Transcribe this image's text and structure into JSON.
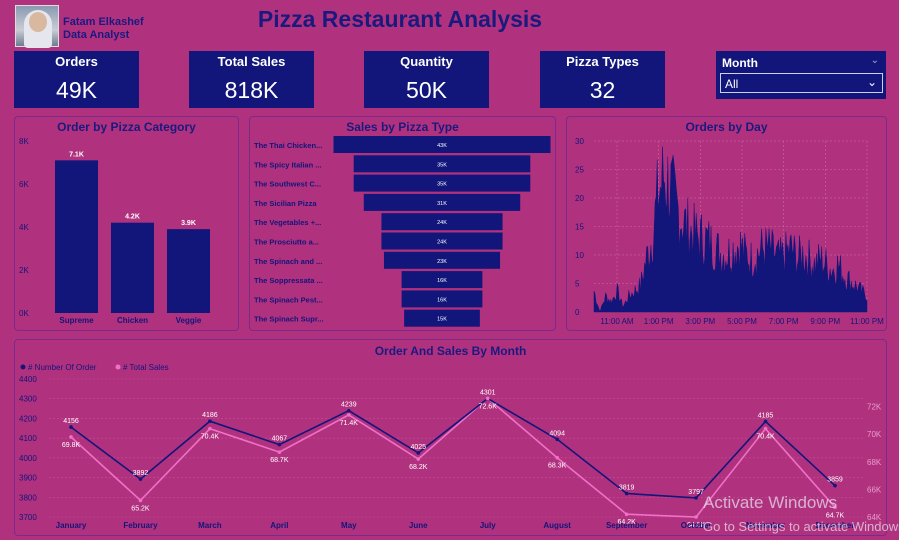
{
  "header": {
    "author_name": "Fatam Elkashef",
    "author_role": "Data Analyst",
    "title": "Pizza Restaurant Analysis"
  },
  "kpis": [
    {
      "label": "Orders",
      "value": "49K"
    },
    {
      "label": "Total Sales",
      "value": "818K"
    },
    {
      "label": "Quantity",
      "value": "50K"
    },
    {
      "label": "Pizza Types",
      "value": "32"
    }
  ],
  "slicer": {
    "label": "Month",
    "selected": "All"
  },
  "watermark": {
    "line1": "Activate Windows",
    "line2": "Go to Settings to activate Windows."
  },
  "colors": {
    "bar": "#12157a",
    "background": "#b0327f",
    "sales_line": "#f070c8",
    "orders_line": "#12157a"
  },
  "chart_data": [
    {
      "type": "bar",
      "title": "Order by Pizza Category",
      "categories": [
        "Supreme",
        "Chicken",
        "Veggie"
      ],
      "values": [
        7100,
        4200,
        3900
      ],
      "data_labels": [
        "7.1K",
        "4.2K",
        "3.9K"
      ],
      "yticks": [
        "0K",
        "2K",
        "4K",
        "6K",
        "8K"
      ],
      "ylim": [
        0,
        8000
      ]
    },
    {
      "type": "bar",
      "orientation": "funnel",
      "title": "Sales by Pizza Type",
      "categories": [
        "The Thai Chicken...",
        "The Spicy Italian ...",
        "The Southwest C...",
        "The Sicilian Pizza",
        "The Vegetables +...",
        "The Prosciutto a...",
        "The Spinach and ...",
        "The Soppressata ...",
        "The Spinach Pest...",
        "The Spinach Supr..."
      ],
      "values": [
        43000,
        35000,
        35000,
        31000,
        24000,
        24000,
        23000,
        16000,
        16000,
        15000
      ],
      "data_labels": [
        "43K",
        "35K",
        "35K",
        "31K",
        "24K",
        "24K",
        "23K",
        "16K",
        "16K",
        "15K"
      ]
    },
    {
      "type": "area",
      "title": "Orders by Day",
      "xticks": [
        "11:00 AM",
        "1:00 PM",
        "3:00 PM",
        "5:00 PM",
        "7:00 PM",
        "9:00 PM",
        "11:00 PM"
      ],
      "yticks": [
        "0",
        "5",
        "10",
        "15",
        "20",
        "25",
        "30"
      ],
      "ylim": [
        0,
        30
      ],
      "series_profile": [
        4,
        0,
        3,
        2,
        4,
        1,
        3,
        4,
        5,
        10,
        14,
        22,
        26,
        24,
        20,
        18,
        16,
        15,
        14,
        14,
        13,
        12,
        11,
        11,
        12,
        13,
        11,
        10,
        11,
        12,
        12,
        11,
        10,
        11,
        12,
        10,
        11,
        10,
        9,
        10,
        9,
        8,
        9,
        7,
        6,
        5,
        4,
        3
      ]
    },
    {
      "type": "line",
      "title": "Order And Sales By Month",
      "categories": [
        "January",
        "February",
        "March",
        "April",
        "May",
        "June",
        "July",
        "August",
        "September",
        "October",
        "November",
        "December"
      ],
      "series": [
        {
          "name": "# Number Of Order",
          "values": [
            4156,
            3892,
            4186,
            4067,
            4239,
            4025,
            4301,
            4094,
            3819,
            3797,
            4185,
            3859
          ],
          "labels": [
            "4156",
            "3892",
            "4186",
            "4067",
            "4239",
            "4025",
            "4301",
            "4094",
            "3819",
            "3797",
            "4185",
            "3859"
          ],
          "axis": "left"
        },
        {
          "name": "# Total Sales",
          "values": [
            69.8,
            65.2,
            70.4,
            68.7,
            71.4,
            68.2,
            72.6,
            68.3,
            64.2,
            64.0,
            70.4,
            64.7
          ],
          "labels": [
            "69.8K",
            "65.2K",
            "70.4K",
            "68.7K",
            "71.4K",
            "68.2K",
            "72.6K",
            "68.3K",
            "64.2K",
            "64.0K",
            "70.4K",
            "64.7K"
          ],
          "axis": "right"
        }
      ],
      "ylim_left": [
        3700,
        4400
      ],
      "yticks_left": [
        "3700",
        "3800",
        "3900",
        "4000",
        "4100",
        "4200",
        "4300",
        "4400"
      ],
      "ylim_right": [
        64,
        74
      ],
      "yticks_right": [
        "64K",
        "66K",
        "68K",
        "70K",
        "72K"
      ]
    }
  ]
}
